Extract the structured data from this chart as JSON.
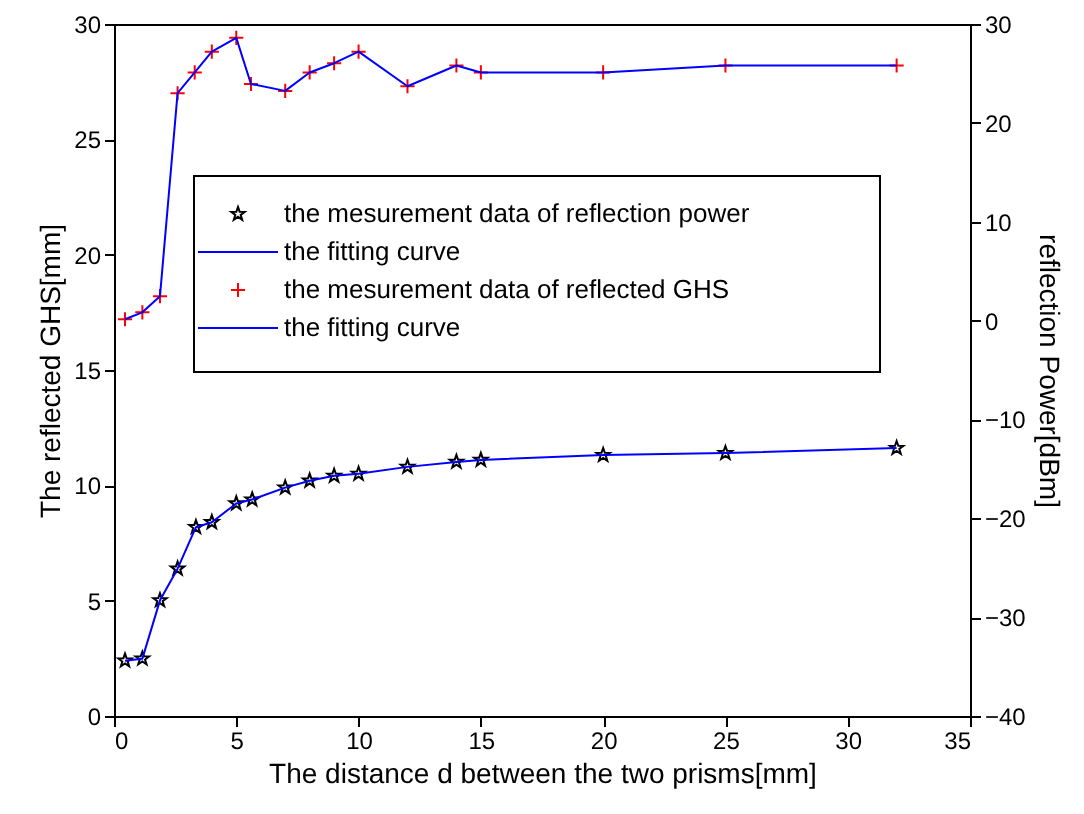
{
  "chart_data": {
    "type": "line",
    "xlabel": "The distance d between the two prisms[mm]",
    "ylabel": "The reflected GHS[mm]",
    "y2label": "reflection Power[dBm]",
    "xlim": [
      0,
      35
    ],
    "xticks": [
      0,
      5,
      10,
      15,
      20,
      25,
      30,
      35
    ],
    "ylim": [
      0,
      30
    ],
    "yticks": [
      0,
      5,
      10,
      15,
      20,
      25,
      30
    ],
    "y2lim": [
      -40,
      30
    ],
    "y2ticks": [
      -40,
      -30,
      -20,
      -10,
      0,
      10,
      20,
      30
    ],
    "grid": false,
    "legend": "center left",
    "series": [
      {
        "name": "the mesurement data of reflection power",
        "type": "scatter",
        "marker": "star",
        "axis": "y2",
        "color": "#000000",
        "x": [
          0.45,
          1.16,
          1.88,
          2.6,
          3.35,
          4,
          5,
          5.65,
          7,
          8,
          9,
          10,
          12,
          14,
          15,
          20,
          25,
          32
        ],
        "values": [
          -34.4,
          -34.2,
          -28.3,
          -25.1,
          -20.9,
          -20.4,
          -18.5,
          -18.1,
          -16.9,
          -16.2,
          -15.7,
          -15.5,
          -14.8,
          -14.3,
          -14.1,
          -13.6,
          -13.4,
          -12.9
        ]
      },
      {
        "name": "the fitting curve",
        "marker": "none",
        "axis": "y2",
        "color": "#0000ff",
        "x": [
          0.45,
          1.16,
          1.88,
          2.6,
          3.35,
          4,
          5,
          5.65,
          7,
          8,
          9,
          10,
          12,
          14,
          15,
          20,
          25,
          32
        ],
        "values": [
          -34.4,
          -34.2,
          -28.3,
          -25.1,
          -20.9,
          -20.4,
          -18.5,
          -18.1,
          -16.9,
          -16.2,
          -15.7,
          -15.5,
          -14.8,
          -14.3,
          -14.1,
          -13.6,
          -13.4,
          -12.9
        ]
      },
      {
        "name": "the mesurement data of reflected GHS",
        "type": "scatter",
        "marker": "cross",
        "color": "#ff0000",
        "x": [
          0.45,
          1.16,
          1.88,
          2.6,
          3.3,
          4,
          5,
          5.6,
          7,
          8,
          9,
          10,
          12,
          14,
          15,
          20,
          25,
          32
        ],
        "values": [
          17.2,
          17.5,
          18.2,
          27.0,
          27.9,
          28.8,
          29.4,
          27.4,
          27.1,
          27.9,
          28.3,
          28.8,
          27.3,
          28.2,
          27.9,
          27.9,
          28.2,
          28.2
        ]
      },
      {
        "name": "the fitting curve",
        "marker": "none",
        "color": "#0000ff",
        "x": [
          0.45,
          1.16,
          1.88,
          2.6,
          3.3,
          4,
          5,
          5.6,
          7,
          8,
          9,
          10,
          12,
          14,
          15,
          20,
          25,
          32
        ],
        "values": [
          17.2,
          17.5,
          18.2,
          27.0,
          27.9,
          28.8,
          29.4,
          27.4,
          27.1,
          27.9,
          28.3,
          28.8,
          27.3,
          28.2,
          27.9,
          27.9,
          28.2,
          28.2
        ]
      }
    ]
  }
}
